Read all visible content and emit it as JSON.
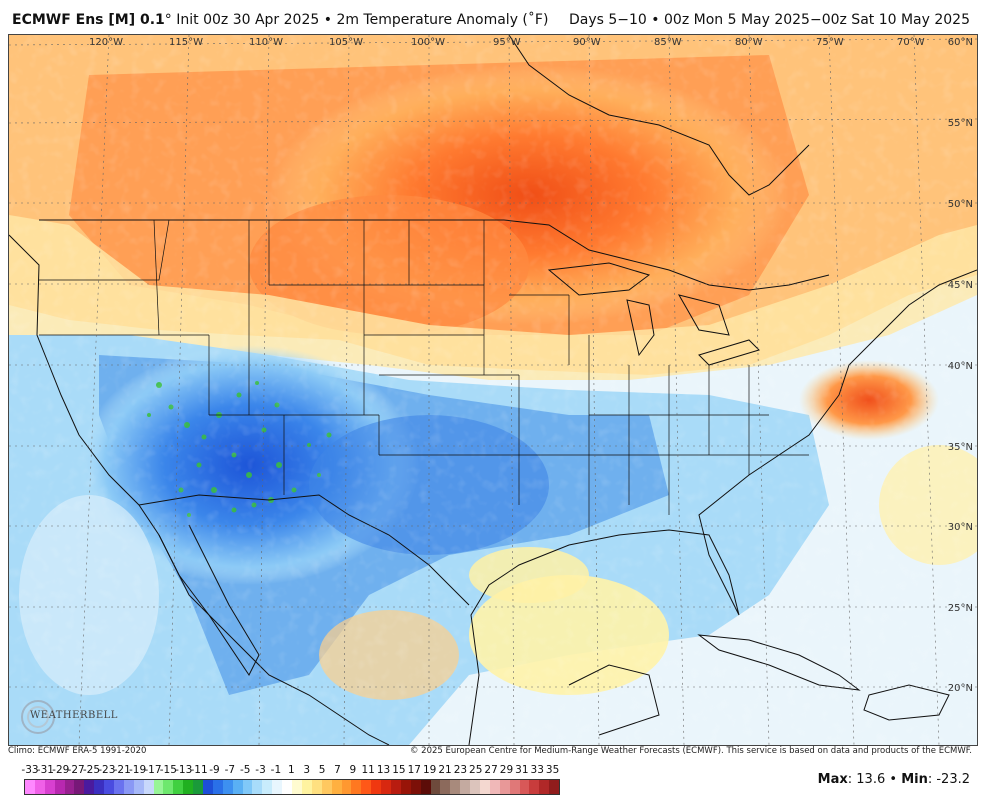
{
  "header": {
    "model": "ECMWF Ens [M] 0.1",
    "degree": "°",
    "init": "Init 00z 30 Apr 2025",
    "bullet": "•",
    "product": "2m Temperature Anomaly (˚F)",
    "right": "Days 5−10 • 00z Mon 5 May 2025−00z Sat 10 May 2025"
  },
  "lon_labels": [
    "120°W",
    "115°W",
    "110°W",
    "105°W",
    "100°W",
    "95°W",
    "90°W",
    "85°W",
    "80°W",
    "75°W",
    "70°W"
  ],
  "lat_labels": [
    "60°N",
    "55°N",
    "50°N",
    "45°N",
    "40°N",
    "35°N",
    "30°N",
    "25°N",
    "20°N"
  ],
  "footer": {
    "left": "Climo: ECMWF ERA-5 1991-2020",
    "right": "© 2025 European Centre for Medium-Range Weather Forecasts (ECMWF). This service is based on data and products of the ECMWF."
  },
  "logo": {
    "text": "WEATHERBELL"
  },
  "scale": {
    "labels": [
      "-33",
      "-31",
      "-29",
      "-27",
      "-25",
      "-23",
      "-21",
      "-19",
      "-17",
      "-15",
      "-13",
      "-11",
      "-9",
      "-7",
      "-5",
      "-3",
      "-1",
      "1",
      "3",
      "5",
      "7",
      "9",
      "11",
      "13",
      "15",
      "17",
      "19",
      "21",
      "23",
      "25",
      "27",
      "29",
      "31",
      "33",
      "35"
    ],
    "colors": [
      "#ff88ff",
      "#f060e8",
      "#d840d0",
      "#b828b0",
      "#982090",
      "#781878",
      "#4a1a9e",
      "#3b2fc0",
      "#4a4ce0",
      "#6a72ef",
      "#8a98f5",
      "#a6b8f8",
      "#c8d8fb",
      "#98f598",
      "#6ee86e",
      "#40d040",
      "#20b020",
      "#1a9a3a",
      "#1d4fd8",
      "#2a70e8",
      "#3d90f0",
      "#5ab0f4",
      "#80c8f8",
      "#a8dcfa",
      "#c8ecfc",
      "#e8f6fe",
      "#ffffff",
      "#fffbd0",
      "#fff3a0",
      "#ffe080",
      "#ffc860",
      "#ffb040",
      "#ff9830",
      "#ff7820",
      "#ff5818",
      "#f03810",
      "#d82810",
      "#b81c10",
      "#981408",
      "#7c1008",
      "#5c0c08",
      "#6e4a3c",
      "#8c6a5c",
      "#a88a7c",
      "#c4aaa0",
      "#dcc4bc",
      "#f4d8d0",
      "#f0b8b8",
      "#e89898",
      "#e07878",
      "#d85858",
      "#c83c3c",
      "#b02828",
      "#901c1c"
    ],
    "max_label": "Max",
    "max_value": ": 13.6",
    "min_label": "Min",
    "min_value": ": -23.2"
  }
}
